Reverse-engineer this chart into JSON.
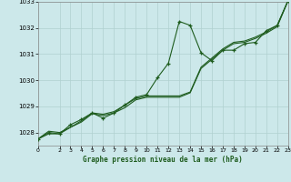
{
  "title": "Graphe pression niveau de la mer (hPa)",
  "bg_color": "#cce8ea",
  "grid_color": "#b0d0d0",
  "line_color": "#1e5c1e",
  "xlim": [
    0,
    23
  ],
  "ylim": [
    1027.5,
    1033.0
  ],
  "yticks": [
    1028,
    1029,
    1030,
    1031,
    1032,
    1033
  ],
  "xtick_positions": [
    0,
    2,
    3,
    4,
    5,
    6,
    7,
    8,
    9,
    10,
    11,
    12,
    13,
    14,
    15,
    16,
    17,
    18,
    19,
    20,
    21,
    22,
    23
  ],
  "xtick_labels": [
    "0",
    "2",
    "3",
    "4",
    "5",
    "6",
    "7",
    "8",
    "9",
    "10",
    "11",
    "12",
    "13",
    "14",
    "15",
    "16",
    "17",
    "18",
    "19",
    "20",
    "21",
    "22",
    "23"
  ],
  "series_marker": [
    1027.75,
    1028.0,
    1027.95,
    1028.3,
    1028.5,
    1028.75,
    1028.55,
    1028.75,
    1029.05,
    1029.35,
    1029.45,
    1030.1,
    1030.65,
    1032.25,
    1032.1,
    1031.05,
    1030.75,
    1031.15,
    1031.15,
    1031.4,
    1031.45,
    1031.9,
    1032.1,
    1033.05
  ],
  "series_line1": [
    1027.75,
    1027.95,
    1027.95,
    1028.2,
    1028.45,
    1028.75,
    1028.7,
    1028.8,
    1029.05,
    1029.3,
    1029.4,
    1029.4,
    1029.4,
    1029.4,
    1029.55,
    1030.5,
    1030.85,
    1031.2,
    1031.45,
    1031.5,
    1031.65,
    1031.85,
    1032.1,
    1033.05
  ],
  "series_line2": [
    1027.75,
    1028.05,
    1028.0,
    1028.2,
    1028.4,
    1028.72,
    1028.65,
    1028.75,
    1028.95,
    1029.25,
    1029.35,
    1029.35,
    1029.35,
    1029.35,
    1029.52,
    1030.45,
    1030.8,
    1031.15,
    1031.4,
    1031.45,
    1031.6,
    1031.8,
    1032.05,
    1033.05
  ]
}
